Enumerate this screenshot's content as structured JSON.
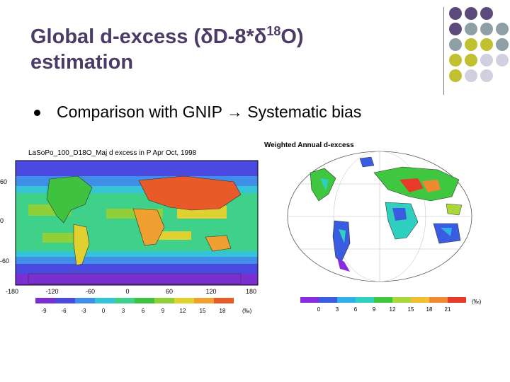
{
  "slide": {
    "title_part1": "Global d-excess (δD-8*δ",
    "title_sup": "18",
    "title_part2": "O)",
    "title_line2": "estimation",
    "bullet": "Comparison with GNIP",
    "bullet_arrow": "→",
    "bullet_tail": "Systematic bias"
  },
  "left_map": {
    "caption": "LaSoPo_100_D18O_Maj d excess in P Apr Oct, 1998",
    "lat_labels": [
      "60",
      "0",
      "-60"
    ],
    "lon_labels": [
      "-180",
      "-120",
      "-60",
      "0",
      "60",
      "120",
      "180"
    ],
    "colorbar_labels": [
      "-9",
      "-6",
      "-3",
      "0",
      "3",
      "6",
      "9",
      "12",
      "15",
      "18"
    ],
    "colorbar_unit": "(‰)",
    "colorbar_colors": [
      "#7b2fd0",
      "#4a4ae0",
      "#3f8ee8",
      "#35c3d8",
      "#3fd08a",
      "#3fc23f",
      "#8fd03a",
      "#e0d030",
      "#f0a030",
      "#e85a28"
    ]
  },
  "right_map": {
    "caption": "Weighted Annual d-excess",
    "colorbar_labels": [
      "0",
      "3",
      "6",
      "9",
      "12",
      "15",
      "18",
      "21"
    ],
    "colorbar_unit": "(‰)",
    "colorbar_colors": [
      "#8a2be2",
      "#3a5ce0",
      "#2fb0e8",
      "#2fd0c0",
      "#3fc83f",
      "#a8d83a",
      "#f0c030",
      "#f08a30",
      "#e83a28"
    ]
  },
  "decor": {
    "dot_colors": [
      "#5b4a7a",
      "#8ea0a6",
      "#c0c030",
      "#d0d0e0"
    ]
  }
}
